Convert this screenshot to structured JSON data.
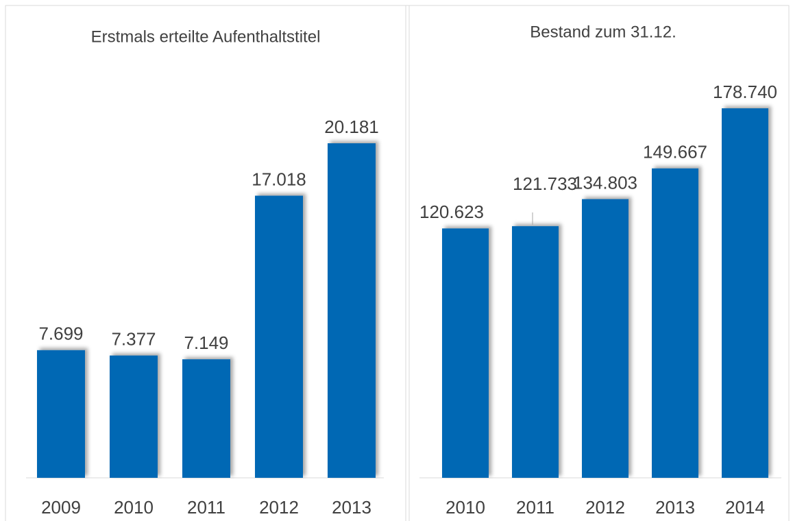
{
  "chart_data": [
    {
      "type": "bar",
      "title": "Erstmals erteilte Aufenthaltstitel",
      "color": "#0068b4",
      "categories": [
        "2009",
        "2010",
        "2011",
        "2012",
        "2013"
      ],
      "values": [
        7699,
        7377,
        7149,
        17018,
        20181
      ],
      "value_labels": [
        "7.699",
        "7.377",
        "7.149",
        "17.018",
        "20.181"
      ]
    },
    {
      "type": "bar",
      "title": "Bestand zum 31.12.",
      "color": "#0068b4",
      "categories": [
        "2010",
        "2011",
        "2012",
        "2013",
        "2014"
      ],
      "values": [
        120623,
        121733,
        134803,
        149667,
        178740
      ],
      "value_labels": [
        "120.623",
        "121.733",
        "134.803",
        "149.667",
        "178.740"
      ]
    }
  ]
}
